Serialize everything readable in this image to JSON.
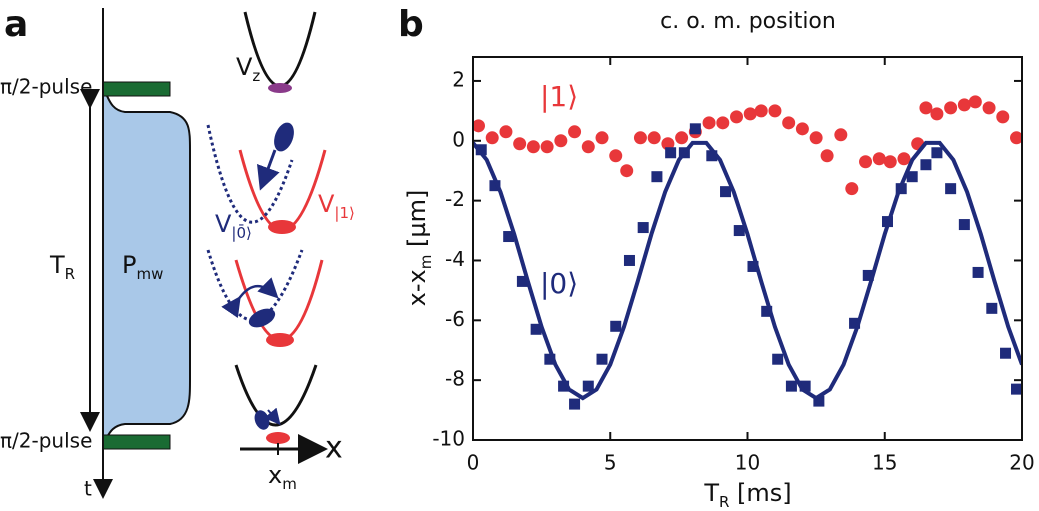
{
  "panel_a": {
    "label": "a",
    "pulse_top": "π/2-pulse",
    "pulse_bottom": "π/2-pulse",
    "ramsey_time": [
      "T",
      "R"
    ],
    "microwave_power": [
      "P",
      "mw"
    ],
    "time_axis": "t",
    "potential_z": [
      "V",
      "z"
    ],
    "potential_0": [
      "V",
      "|0̄⟩"
    ],
    "potential_1": [
      "V",
      "|1⟩"
    ],
    "position_axis": "x",
    "minimum": [
      "x",
      "m"
    ]
  },
  "chart_data": {
    "type": "scatter",
    "panel_label": "b",
    "title": "c. o. m. position",
    "xlabel": [
      "T",
      "R",
      " [ms]"
    ],
    "ylabel": [
      "x-x",
      "m",
      " [µm]"
    ],
    "xlim": [
      0,
      20
    ],
    "xticks": [
      0,
      5,
      10,
      15,
      20
    ],
    "ylim": [
      -10,
      2.8
    ],
    "yticks": [
      -10,
      -8,
      -6,
      -4,
      -2,
      0,
      2
    ],
    "series": [
      {
        "name": "|1⟩",
        "color": "#e8373a",
        "marker": "circle",
        "x": [
          0.2,
          0.7,
          1.2,
          1.7,
          2.2,
          2.7,
          3.2,
          3.7,
          4.2,
          4.7,
          5.2,
          5.6,
          6.1,
          6.6,
          7.1,
          7.6,
          8.1,
          8.6,
          9.1,
          9.6,
          10.1,
          10.5,
          11.0,
          11.5,
          12.0,
          12.5,
          12.9,
          13.4,
          13.8,
          14.3,
          14.8,
          15.2,
          15.7,
          16.2,
          16.5,
          16.9,
          17.4,
          17.9,
          18.3,
          18.8,
          19.3,
          19.8
        ],
        "values": [
          0.5,
          0.1,
          0.3,
          -0.1,
          -0.2,
          -0.2,
          0,
          0.3,
          -0.2,
          0.1,
          -0.5,
          -1.0,
          0.1,
          0.1,
          -0.1,
          0.1,
          0.3,
          0.6,
          0.6,
          0.8,
          0.9,
          1.0,
          1.0,
          0.6,
          0.4,
          0.1,
          -0.5,
          0.2,
          -1.6,
          -0.7,
          -0.6,
          -0.7,
          -0.6,
          -0.1,
          1.1,
          0.9,
          1.1,
          1.2,
          1.3,
          1.1,
          0.8,
          0.1
        ]
      },
      {
        "name": "|0⟩",
        "color": "#1f2b7b",
        "marker": "square",
        "x": [
          0.3,
          0.8,
          1.3,
          1.8,
          2.3,
          2.8,
          3.3,
          3.7,
          4.2,
          4.7,
          5.2,
          5.7,
          6.2,
          6.7,
          7.2,
          7.7,
          8.1,
          8.7,
          9.2,
          9.7,
          10.2,
          10.7,
          11.1,
          11.6,
          12.1,
          12.6,
          13.9,
          14.4,
          15.1,
          15.6,
          16.0,
          16.5,
          16.9,
          17.4,
          17.9,
          18.4,
          18.9,
          19.4,
          19.8
        ],
        "values": [
          -0.3,
          -1.5,
          -3.2,
          -4.7,
          -6.3,
          -7.3,
          -8.2,
          -8.8,
          -8.2,
          -7.3,
          -6.2,
          -4.0,
          -2.9,
          -1.2,
          -0.4,
          -0.4,
          0.4,
          -0.5,
          -1.7,
          -3.0,
          -4.2,
          -5.7,
          -7.3,
          -8.2,
          -8.2,
          -8.7,
          -6.1,
          -4.5,
          -2.7,
          -1.6,
          -1.2,
          -0.8,
          -0.4,
          -1.6,
          -2.8,
          -4.4,
          -5.6,
          -7.1,
          -8.3
        ]
      },
      {
        "color": "#1f2b7b",
        "marker": "line",
        "x": [
          0,
          0.5,
          1,
          1.5,
          2,
          2.5,
          3,
          3.5,
          4,
          4.5,
          5,
          5.5,
          6,
          6.5,
          7,
          7.5,
          8,
          8.5,
          9,
          9.5,
          10,
          10.5,
          11,
          11.5,
          12,
          12.5,
          13,
          13.5,
          14,
          14.5,
          15,
          15.5,
          16,
          16.5,
          17,
          17.5,
          18,
          18.5,
          19,
          19.5,
          20
        ],
        "values": [
          -0.07,
          -0.64,
          -1.71,
          -3.12,
          -4.7,
          -6.22,
          -7.48,
          -8.31,
          -8.6,
          -8.31,
          -7.48,
          -6.22,
          -4.7,
          -3.12,
          -1.71,
          -0.64,
          -0.07,
          -0.07,
          -0.64,
          -1.71,
          -3.12,
          -4.7,
          -6.22,
          -7.48,
          -8.31,
          -8.6,
          -8.31,
          -7.48,
          -6.22,
          -4.7,
          -3.12,
          -1.71,
          -0.64,
          -0.07,
          -0.07,
          -0.64,
          -1.71,
          -3.12,
          -4.7,
          -6.22,
          -7.48
        ]
      }
    ]
  }
}
